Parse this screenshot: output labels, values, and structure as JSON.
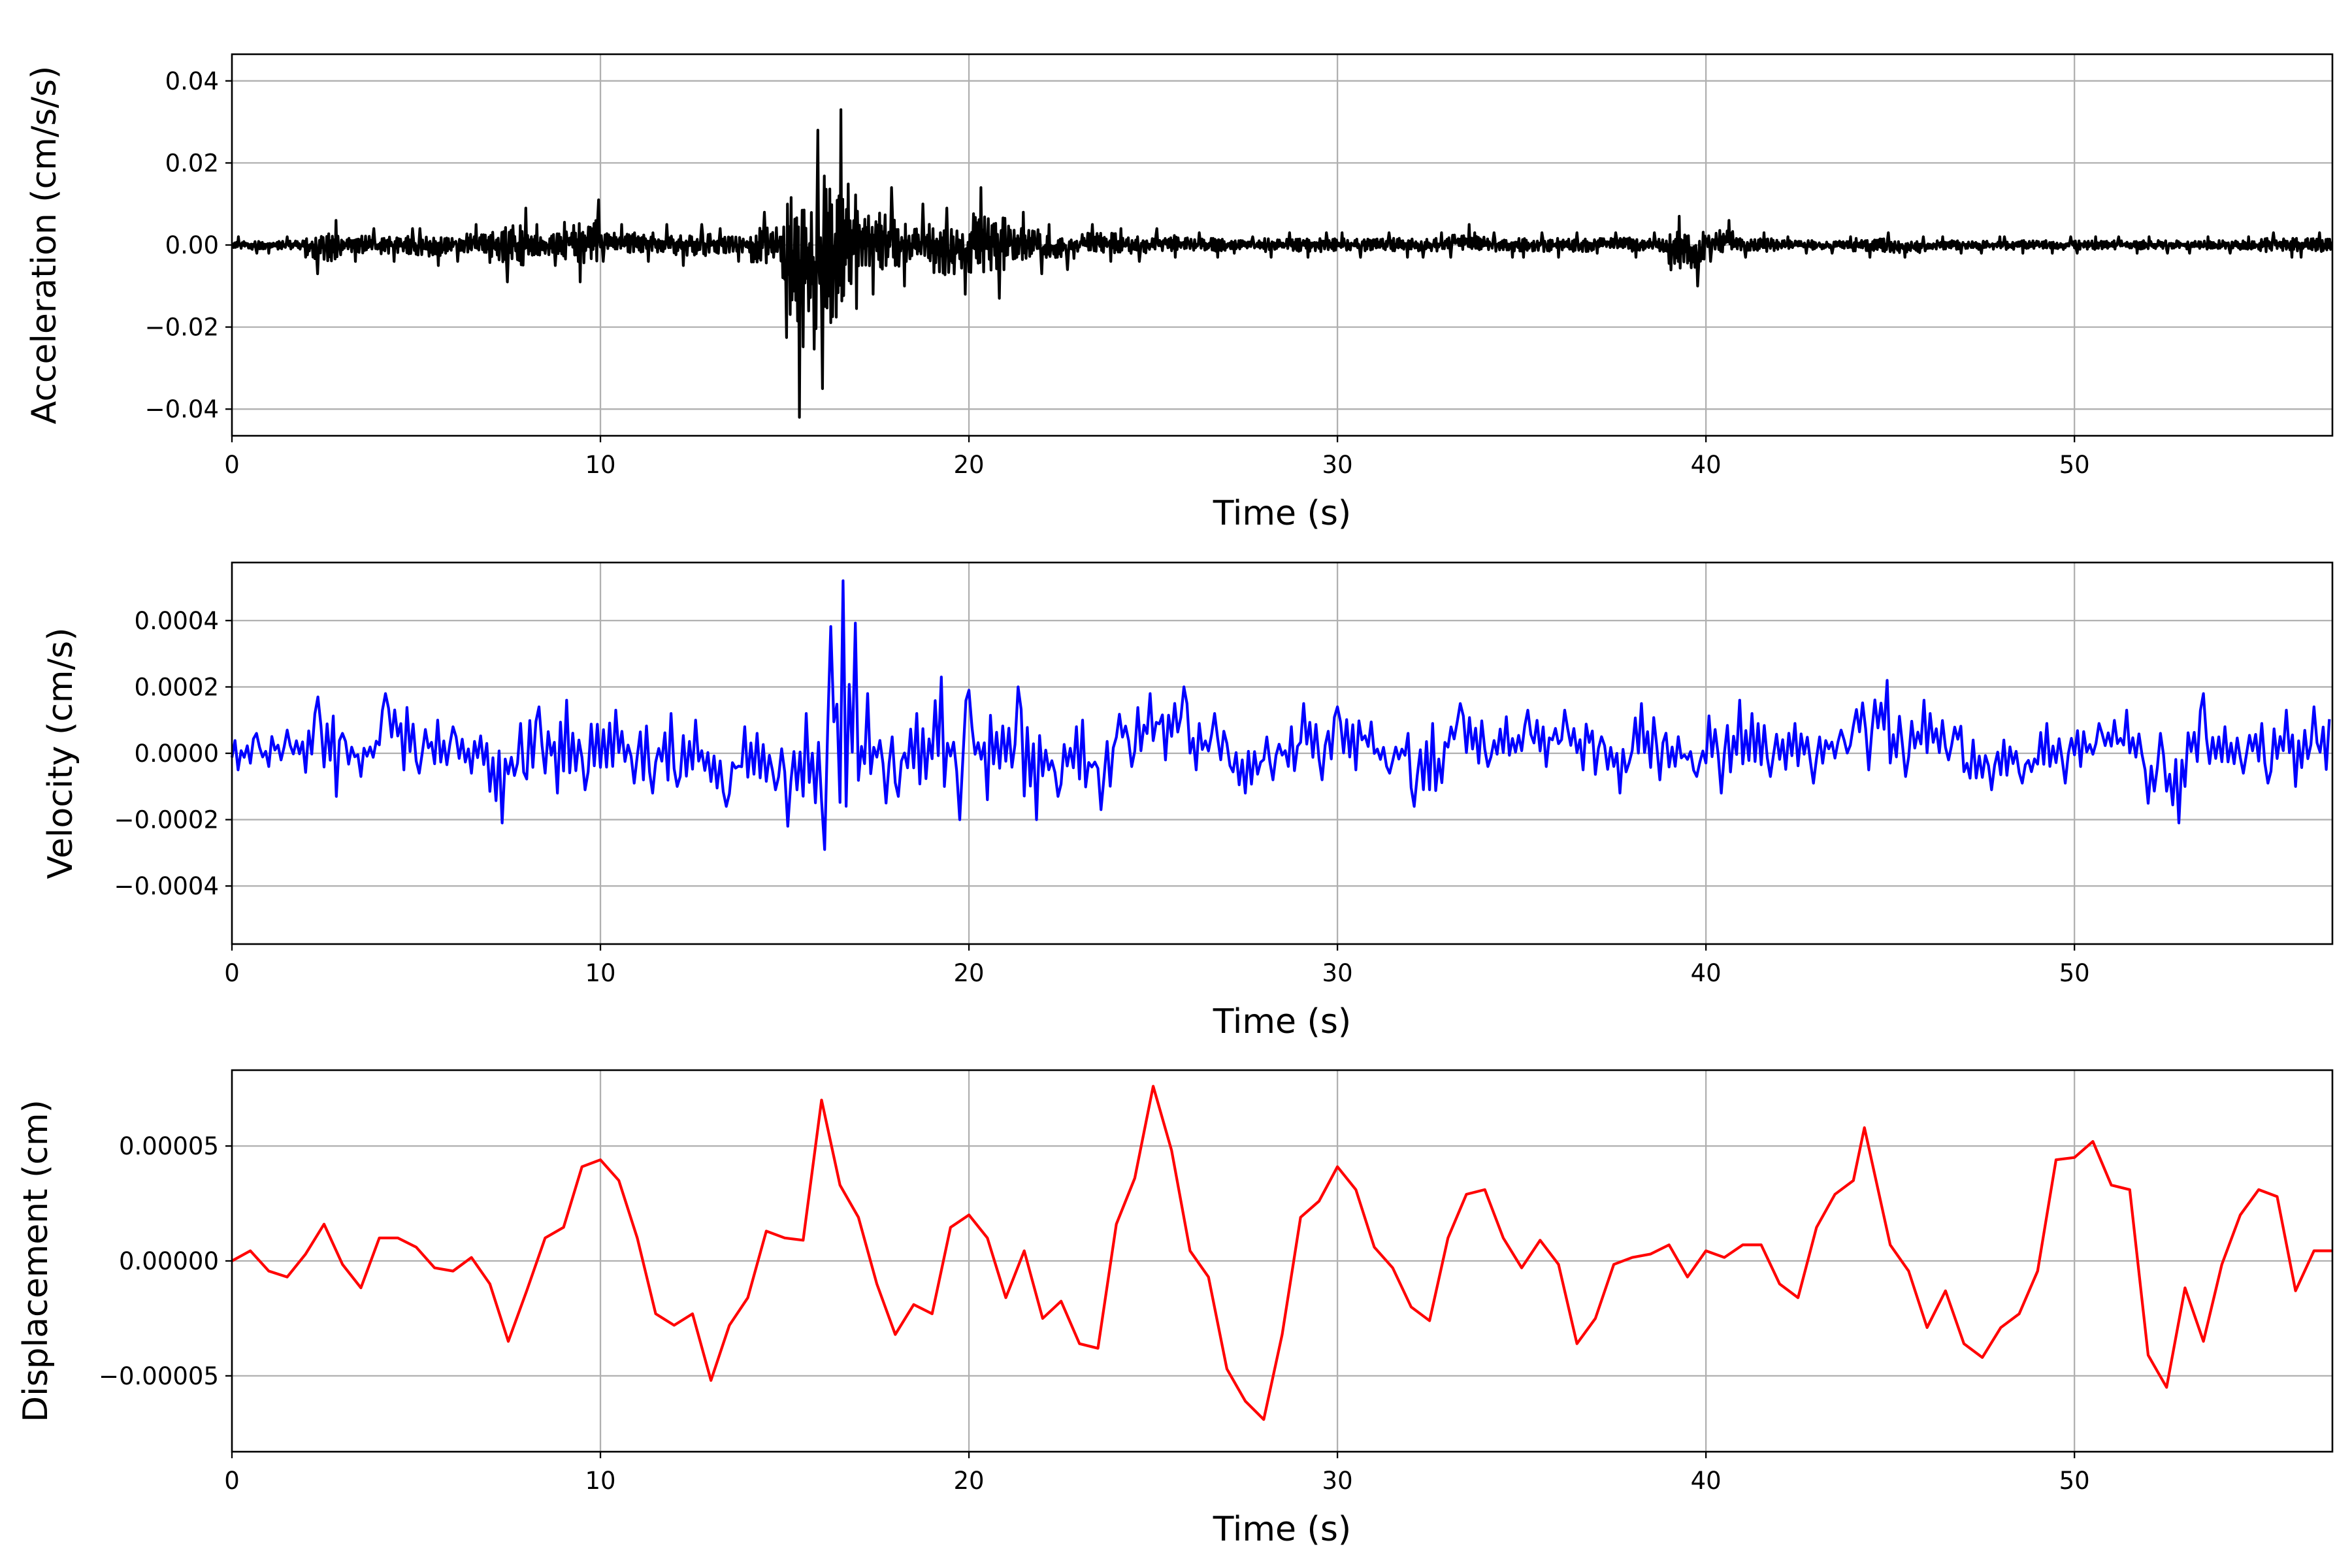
{
  "chart_data": [
    {
      "type": "line",
      "title": "",
      "xlabel": "Time (s)",
      "ylabel": "Acceleration (cm/s/s)",
      "xlim": [
        0,
        57
      ],
      "ylim": [
        -0.0465,
        0.0465
      ],
      "grid": true,
      "color": "#000000",
      "xticks": [
        0,
        10,
        20,
        30,
        40,
        50
      ],
      "xtick_labels": [
        "0",
        "10",
        "20",
        "30",
        "40",
        "50"
      ],
      "yticks": [
        0.04,
        0.02,
        0,
        -0.02,
        -0.04
      ],
      "ytick_labels": [
        "0.04",
        "0.02",
        "0.00",
        "−0.02",
        "−0.04"
      ],
      "representation": "per-1s-bin envelope (max, min)",
      "bin_start_s": 0,
      "bin_width_s": 1,
      "upper": [
        0.002,
        0.002,
        0.006,
        0.004,
        0.004,
        0.004,
        0.005,
        0.009,
        0.005,
        0.011,
        0.005,
        0.005,
        0.005,
        0.004,
        0.008,
        0.028,
        0.033,
        0.014,
        0.01,
        0.009,
        0.014,
        0.008,
        0.005,
        0.005,
        0.004,
        0.004,
        0.003,
        0.002,
        0.003,
        0.003,
        0.003,
        0.003,
        0.003,
        0.005,
        0.003,
        0.003,
        0.003,
        0.003,
        0.003,
        0.007,
        0.006,
        0.003,
        0.002,
        0.002,
        0.003,
        0.002,
        0.002,
        0.002,
        0.002,
        0.002,
        0.002,
        0.002,
        0.002,
        0.002,
        0.002,
        0.003,
        0.003
      ],
      "lower": [
        -0.002,
        -0.002,
        -0.007,
        -0.004,
        -0.004,
        -0.005,
        -0.004,
        -0.009,
        -0.005,
        -0.009,
        -0.004,
        -0.004,
        -0.005,
        -0.004,
        -0.008,
        -0.042,
        -0.035,
        -0.012,
        -0.01,
        -0.012,
        -0.013,
        -0.007,
        -0.006,
        -0.004,
        -0.004,
        -0.003,
        -0.003,
        -0.002,
        -0.003,
        -0.003,
        -0.003,
        -0.003,
        -0.003,
        -0.003,
        -0.003,
        -0.003,
        -0.003,
        -0.002,
        -0.003,
        -0.01,
        -0.004,
        -0.003,
        -0.002,
        -0.002,
        -0.003,
        -0.003,
        -0.002,
        -0.002,
        -0.002,
        -0.002,
        -0.002,
        -0.002,
        -0.002,
        -0.002,
        -0.002,
        -0.003,
        -0.003
      ]
    },
    {
      "type": "line",
      "title": "",
      "xlabel": "Time (s)",
      "ylabel": "Velocity (cm/s)",
      "xlim": [
        0,
        57
      ],
      "ylim": [
        -0.000575,
        0.000575
      ],
      "grid": true,
      "color": "#0000ff",
      "xticks": [
        0,
        10,
        20,
        30,
        40,
        50
      ],
      "xtick_labels": [
        "0",
        "10",
        "20",
        "30",
        "40",
        "50"
      ],
      "yticks": [
        0.0004,
        0.0002,
        0,
        -0.0002,
        -0.0004
      ],
      "ytick_labels": [
        "0.0004",
        "0.0002",
        "0.0000",
        "−0.0002",
        "−0.0004"
      ],
      "representation": "per-1s-bin envelope (max, min)",
      "bin_start_s": 0,
      "bin_width_s": 1,
      "upper": [
        6e-05,
        7e-05,
        0.00017,
        6e-05,
        0.00018,
        0.0001,
        8e-05,
        9e-05,
        0.00014,
        0.00016,
        0.00013,
        0.00012,
        0.0001,
        8e-05,
        6e-05,
        0.00012,
        0.00052,
        0.00018,
        0.00012,
        0.00023,
        0.00019,
        0.0002,
        8e-05,
        0.0001,
        0.00018,
        0.0002,
        0.00012,
        3e-05,
        8e-05,
        0.00015,
        0.00014,
        6e-05,
        9e-05,
        0.00015,
        0.00011,
        0.00013,
        0.00013,
        5e-05,
        0.00015,
        5e-05,
        0.00016,
        0.00012,
        9e-05,
        7e-05,
        0.00022,
        0.00016,
        0.00012,
        4e-05,
        4e-05,
        9e-05,
        9e-05,
        0.00013,
        6e-05,
        0.00018,
        8e-05,
        0.00013,
        0.00014
      ],
      "lower": [
        -5e-05,
        -4e-05,
        -0.00013,
        -7e-05,
        -5e-05,
        -6e-05,
        -6e-05,
        -0.00021,
        -0.00012,
        -0.00011,
        -9e-05,
        -0.00012,
        -0.0001,
        -0.00016,
        -0.00011,
        -0.00022,
        -0.00029,
        -0.00015,
        -0.00013,
        -0.0002,
        -0.00014,
        -0.0002,
        -0.00013,
        -0.00017,
        -4e-05,
        -2e-05,
        -5e-05,
        -0.00012,
        -8e-05,
        -8e-05,
        -5e-05,
        -6e-05,
        -0.00016,
        -3e-05,
        -4e-05,
        -4e-05,
        -5e-05,
        -0.00012,
        -8e-05,
        -7e-05,
        -0.00012,
        -7e-05,
        -9e-05,
        -3e-05,
        -5e-05,
        -7e-05,
        -2e-05,
        -0.00011,
        -9e-05,
        -9e-05,
        -4e-05,
        -5e-05,
        -0.00021,
        -0.0001,
        -6e-05,
        -9e-05,
        -0.0001
      ]
    },
    {
      "type": "line",
      "title": "",
      "xlabel": "Time (s)",
      "ylabel": "Displacement (cm)",
      "xlim": [
        0,
        57
      ],
      "ylim": [
        -8.3e-05,
        8.3e-05
      ],
      "grid": true,
      "color": "#ff0000",
      "xticks": [
        0,
        10,
        20,
        30,
        40,
        50
      ],
      "xtick_labels": [
        "0",
        "10",
        "20",
        "30",
        "40",
        "50"
      ],
      "yticks": [
        5e-05,
        0,
        -5e-05
      ],
      "ytick_labels": [
        "0.00005",
        "0.00000",
        "−0.00005"
      ],
      "x": [
        0,
        0.5,
        1,
        1.5,
        2,
        2.5,
        3,
        3.5,
        4,
        4.5,
        5,
        5.5,
        6,
        6.5,
        7,
        7.5,
        8,
        8.5,
        9,
        9.5,
        10,
        10.5,
        11,
        11.5,
        12,
        12.5,
        13,
        13.5,
        14,
        14.5,
        15,
        15.5,
        16,
        16.5,
        17,
        17.5,
        18,
        18.5,
        19,
        19.5,
        20,
        20.5,
        21,
        21.5,
        22,
        22.5,
        23,
        23.5,
        24,
        24.5,
        25,
        25.5,
        26,
        26.5,
        27,
        27.5,
        28,
        28.5,
        29,
        29.5,
        30,
        30.5,
        31,
        31.5,
        32,
        32.5,
        33,
        33.5,
        34,
        34.5,
        35,
        35.5,
        36,
        36.5,
        37,
        37.5,
        38,
        38.5,
        39,
        39.5,
        40,
        40.5,
        41,
        41.5,
        42,
        42.5,
        43,
        43.5,
        44,
        44.3,
        45,
        45.5,
        46,
        46.5,
        47,
        47.5,
        48,
        48.5,
        49,
        49.5,
        50,
        50.5,
        51,
        51.5,
        52,
        52.5,
        53,
        53.5,
        54,
        54.5,
        55,
        55.5,
        56,
        56.5,
        57
      ],
      "y": [
        0,
        4.4e-06,
        -4.4e-06,
        -7e-06,
        3e-06,
        1.6e-05,
        -1.5e-06,
        -1.17e-05,
        1e-05,
        1e-05,
        6e-06,
        -3e-06,
        -4.4e-06,
        1.5e-06,
        -1e-05,
        -3.5e-05,
        -1.3e-05,
        1e-05,
        1.46e-05,
        4.1e-05,
        4.4e-05,
        3.5e-05,
        1e-05,
        -2.3e-05,
        -2.8e-05,
        -2.3e-05,
        -5.2e-05,
        -2.8e-05,
        -1.6e-05,
        1.3e-05,
        1e-05,
        9e-06,
        7e-05,
        3.3e-05,
        1.9e-05,
        -1e-05,
        -3.2e-05,
        -1.9e-05,
        -2.3e-05,
        1.46e-05,
        2e-05,
        1e-05,
        -1.6e-05,
        4.4e-06,
        -2.5e-05,
        -1.75e-05,
        -3.6e-05,
        -3.8e-05,
        1.6e-05,
        3.6e-05,
        7.6e-05,
        4.8e-05,
        4.4e-06,
        -7e-06,
        -4.7e-05,
        -6.1e-05,
        -6.9e-05,
        -3.2e-05,
        1.9e-05,
        2.6e-05,
        4.1e-05,
        3.1e-05,
        6e-06,
        -3e-06,
        -2e-05,
        -2.6e-05,
        1e-05,
        2.9e-05,
        3.1e-05,
        1e-05,
        -3e-06,
        9e-06,
        -1.5e-06,
        -3.6e-05,
        -2.5e-05,
        -1.5e-06,
        1.5e-06,
        3e-06,
        7e-06,
        -7e-06,
        4.4e-06,
        1.5e-06,
        7e-06,
        7e-06,
        -1e-05,
        -1.6e-05,
        1.46e-05,
        2.9e-05,
        3.5e-05,
        5.8e-05,
        7e-06,
        -4.4e-06,
        -2.9e-05,
        -1.3e-05,
        -3.6e-05,
        -4.2e-05,
        -2.9e-05,
        -2.3e-05,
        -4.4e-06,
        4.4e-05,
        4.5e-05,
        5.2e-05,
        3.3e-05,
        3.1e-05,
        -4.1e-05,
        -5.5e-05,
        -1.17e-05,
        -3.5e-05,
        -1.5e-06,
        2e-05,
        3.1e-05,
        2.8e-05,
        -1.3e-05,
        4.4e-06,
        4.4e-06
      ]
    }
  ]
}
